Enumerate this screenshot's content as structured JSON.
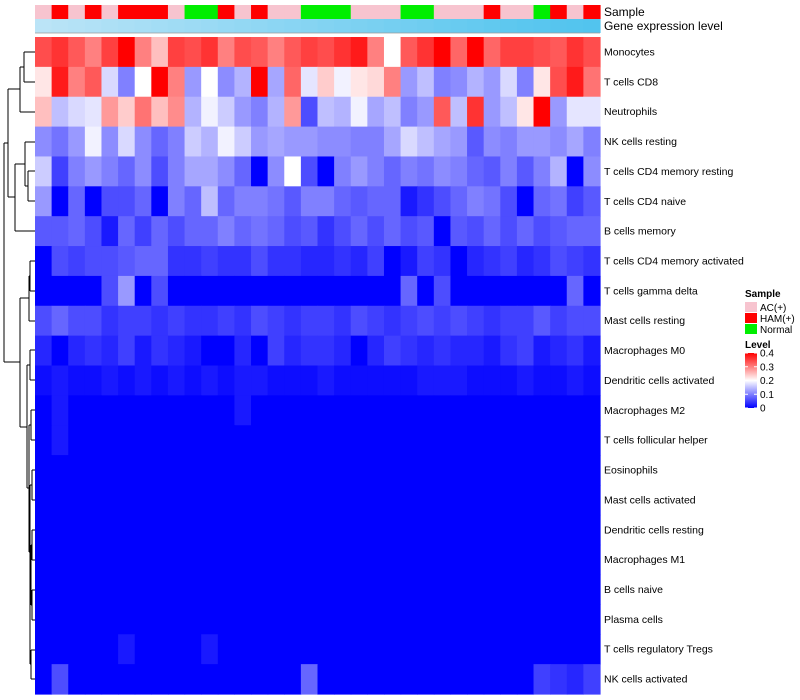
{
  "chart_data": {
    "type": "heatmap",
    "annotation_tracks": [
      "Sample",
      "Gene expression level"
    ],
    "rows": [
      "Monocytes",
      "T cells CD8",
      "Neutrophils",
      "NK cells resting",
      "T cells CD4 memory resting",
      "T cells CD4 naive",
      "B cells memory",
      "T cells CD4 memory activated",
      "T cells gamma delta",
      "Mast cells resting",
      "Macrophages M0",
      "Dendritic cells activated",
      "Macrophages M2",
      "T cells follicular helper",
      "Eosinophils",
      "Mast cells activated",
      "Dendritic cells resting",
      "Macrophages M1",
      "B cells naive",
      "Plasma cells",
      "T cells regulatory  Tregs",
      "NK cells activated"
    ],
    "n_columns": 34,
    "sample_annotation": [
      "AC(+)",
      "HAM(+)",
      "AC(+)",
      "HAM(+)",
      "AC(+)",
      "HAM(+)",
      "HAM(+)",
      "HAM(+)",
      "AC(+)",
      "Normal",
      "Normal",
      "HAM(+)",
      "AC(+)",
      "HAM(+)",
      "AC(+)",
      "AC(+)",
      "Normal",
      "Normal",
      "Normal",
      "AC(+)",
      "AC(+)",
      "AC(+)",
      "Normal",
      "Normal",
      "AC(+)",
      "AC(+)",
      "AC(+)",
      "HAM(+)",
      "AC(+)",
      "AC(+)",
      "Normal",
      "HAM(+)",
      "AC(+)",
      "HAM(+)"
    ],
    "gene_expression_level": [
      0.05,
      0.08,
      0.11,
      0.14,
      0.17,
      0.2,
      0.23,
      0.26,
      0.29,
      0.32,
      0.35,
      0.38,
      0.41,
      0.44,
      0.47,
      0.5,
      0.53,
      0.56,
      0.59,
      0.62,
      0.65,
      0.68,
      0.71,
      0.74,
      0.77,
      0.8,
      0.83,
      0.86,
      0.89,
      0.92,
      0.94,
      0.96,
      0.98,
      1.0
    ],
    "values": [
      [
        0.34,
        0.36,
        0.33,
        0.3,
        0.35,
        0.4,
        0.3,
        0.25,
        0.35,
        0.34,
        0.36,
        0.3,
        0.34,
        0.33,
        0.3,
        0.33,
        0.35,
        0.34,
        0.36,
        0.38,
        0.3,
        0.2,
        0.33,
        0.36,
        0.4,
        0.32,
        0.4,
        0.32,
        0.35,
        0.35,
        0.34,
        0.33,
        0.36,
        0.34
      ],
      [
        0.22,
        0.38,
        0.3,
        0.33,
        0.17,
        0.1,
        0.2,
        0.4,
        0.3,
        0.12,
        0.2,
        0.11,
        0.14,
        0.4,
        0.13,
        0.32,
        0.18,
        0.24,
        0.19,
        0.22,
        0.23,
        0.3,
        0.12,
        0.15,
        0.1,
        0.11,
        0.14,
        0.12,
        0.17,
        0.1,
        0.22,
        0.34,
        0.38,
        0.31
      ],
      [
        0.25,
        0.15,
        0.17,
        0.18,
        0.28,
        0.24,
        0.31,
        0.25,
        0.29,
        0.14,
        0.19,
        0.16,
        0.12,
        0.1,
        0.14,
        0.28,
        0.06,
        0.15,
        0.14,
        0.19,
        0.13,
        0.15,
        0.1,
        0.12,
        0.33,
        0.15,
        0.36,
        0.12,
        0.15,
        0.22,
        0.4,
        0.12,
        0.18,
        0.18
      ],
      [
        0.11,
        0.09,
        0.12,
        0.19,
        0.11,
        0.17,
        0.11,
        0.08,
        0.1,
        0.16,
        0.14,
        0.19,
        0.16,
        0.12,
        0.13,
        0.12,
        0.12,
        0.11,
        0.11,
        0.1,
        0.1,
        0.13,
        0.17,
        0.15,
        0.13,
        0.12,
        0.07,
        0.11,
        0.1,
        0.12,
        0.12,
        0.11,
        0.13,
        0.1
      ],
      [
        0.16,
        0.05,
        0.1,
        0.12,
        0.1,
        0.08,
        0.11,
        0.06,
        0.1,
        0.13,
        0.13,
        0.11,
        0.08,
        0.0,
        0.11,
        0.2,
        0.06,
        0.0,
        0.1,
        0.12,
        0.1,
        0.08,
        0.1,
        0.09,
        0.11,
        0.1,
        0.08,
        0.07,
        0.1,
        0.07,
        0.1,
        0.14,
        0.0,
        0.11
      ],
      [
        0.12,
        0.0,
        0.08,
        0.0,
        0.06,
        0.06,
        0.08,
        0.0,
        0.1,
        0.08,
        0.15,
        0.08,
        0.1,
        0.1,
        0.09,
        0.07,
        0.1,
        0.1,
        0.08,
        0.07,
        0.08,
        0.08,
        0.02,
        0.04,
        0.06,
        0.08,
        0.1,
        0.09,
        0.06,
        0.0,
        0.08,
        0.09,
        0.05,
        0.07
      ],
      [
        0.07,
        0.07,
        0.08,
        0.06,
        0.02,
        0.08,
        0.05,
        0.08,
        0.06,
        0.08,
        0.08,
        0.1,
        0.08,
        0.09,
        0.08,
        0.06,
        0.07,
        0.04,
        0.06,
        0.08,
        0.06,
        0.08,
        0.06,
        0.07,
        0.0,
        0.07,
        0.06,
        0.08,
        0.06,
        0.08,
        0.06,
        0.07,
        0.08,
        0.08
      ],
      [
        0.0,
        0.06,
        0.05,
        0.06,
        0.06,
        0.07,
        0.08,
        0.08,
        0.04,
        0.04,
        0.05,
        0.04,
        0.04,
        0.06,
        0.04,
        0.04,
        0.03,
        0.03,
        0.04,
        0.03,
        0.05,
        0.0,
        0.02,
        0.05,
        0.04,
        0.0,
        0.03,
        0.04,
        0.05,
        0.03,
        0.04,
        0.06,
        0.05,
        0.04
      ],
      [
        0.0,
        0.0,
        0.0,
        0.0,
        0.06,
        0.12,
        0.0,
        0.06,
        0.0,
        0.0,
        0.0,
        0.0,
        0.0,
        0.0,
        0.0,
        0.0,
        0.0,
        0.0,
        0.0,
        0.0,
        0.0,
        0.0,
        0.08,
        0.0,
        0.06,
        0.0,
        0.0,
        0.0,
        0.0,
        0.0,
        0.0,
        0.0,
        0.08,
        0.0
      ],
      [
        0.06,
        0.08,
        0.06,
        0.06,
        0.04,
        0.05,
        0.05,
        0.04,
        0.05,
        0.04,
        0.04,
        0.05,
        0.04,
        0.06,
        0.05,
        0.04,
        0.05,
        0.05,
        0.04,
        0.06,
        0.05,
        0.04,
        0.05,
        0.06,
        0.05,
        0.06,
        0.05,
        0.04,
        0.05,
        0.05,
        0.07,
        0.05,
        0.06,
        0.06
      ],
      [
        0.03,
        0.0,
        0.03,
        0.04,
        0.03,
        0.05,
        0.02,
        0.04,
        0.03,
        0.02,
        0.0,
        0.0,
        0.03,
        0.0,
        0.05,
        0.03,
        0.04,
        0.04,
        0.03,
        0.0,
        0.03,
        0.05,
        0.04,
        0.03,
        0.04,
        0.03,
        0.03,
        0.02,
        0.04,
        0.05,
        0.02,
        0.03,
        0.04,
        0.02
      ],
      [
        0.01,
        0.02,
        0.01,
        0.01,
        0.02,
        0.01,
        0.02,
        0.01,
        0.02,
        0.01,
        0.02,
        0.01,
        0.02,
        0.02,
        0.01,
        0.01,
        0.01,
        0.02,
        0.01,
        0.01,
        0.01,
        0.01,
        0.01,
        0.02,
        0.02,
        0.02,
        0.01,
        0.01,
        0.01,
        0.02,
        0.01,
        0.01,
        0.02,
        0.01
      ],
      [
        0.0,
        0.02,
        0.0,
        0.0,
        0.0,
        0.0,
        0.0,
        0.0,
        0.0,
        0.0,
        0.0,
        0.0,
        0.02,
        0.0,
        0.0,
        0.0,
        0.0,
        0.0,
        0.0,
        0.0,
        0.0,
        0.0,
        0.0,
        0.0,
        0.0,
        0.0,
        0.0,
        0.0,
        0.0,
        0.0,
        0.0,
        0.0,
        0.0,
        0.0
      ],
      [
        0.0,
        0.02,
        0.0,
        0.0,
        0.0,
        0.0,
        0.0,
        0.0,
        0.0,
        0.0,
        0.0,
        0.0,
        0.0,
        0.0,
        0.0,
        0.0,
        0.0,
        0.0,
        0.0,
        0.0,
        0.0,
        0.0,
        0.0,
        0.0,
        0.0,
        0.0,
        0.0,
        0.0,
        0.0,
        0.0,
        0.0,
        0.0,
        0.0,
        0.0
      ],
      [
        0.0,
        0.0,
        0.0,
        0.0,
        0.0,
        0.0,
        0.0,
        0.0,
        0.0,
        0.0,
        0.0,
        0.0,
        0.0,
        0.0,
        0.0,
        0.0,
        0.0,
        0.0,
        0.0,
        0.0,
        0.0,
        0.0,
        0.0,
        0.0,
        0.0,
        0.0,
        0.0,
        0.0,
        0.0,
        0.0,
        0.0,
        0.0,
        0.0,
        0.0
      ],
      [
        0.0,
        0.0,
        0.0,
        0.0,
        0.0,
        0.0,
        0.0,
        0.0,
        0.0,
        0.0,
        0.0,
        0.0,
        0.0,
        0.0,
        0.0,
        0.0,
        0.0,
        0.0,
        0.0,
        0.0,
        0.0,
        0.0,
        0.0,
        0.0,
        0.0,
        0.0,
        0.0,
        0.0,
        0.0,
        0.0,
        0.0,
        0.0,
        0.0,
        0.0
      ],
      [
        0.0,
        0.0,
        0.0,
        0.0,
        0.0,
        0.0,
        0.0,
        0.0,
        0.0,
        0.0,
        0.0,
        0.0,
        0.0,
        0.0,
        0.0,
        0.0,
        0.0,
        0.0,
        0.0,
        0.0,
        0.0,
        0.0,
        0.0,
        0.0,
        0.0,
        0.0,
        0.0,
        0.0,
        0.0,
        0.0,
        0.0,
        0.0,
        0.0,
        0.0
      ],
      [
        0.0,
        0.0,
        0.0,
        0.0,
        0.0,
        0.0,
        0.0,
        0.0,
        0.0,
        0.0,
        0.0,
        0.0,
        0.0,
        0.0,
        0.0,
        0.0,
        0.0,
        0.0,
        0.0,
        0.0,
        0.0,
        0.0,
        0.0,
        0.0,
        0.0,
        0.0,
        0.0,
        0.0,
        0.0,
        0.0,
        0.0,
        0.0,
        0.0,
        0.0
      ],
      [
        0.0,
        0.0,
        0.0,
        0.0,
        0.0,
        0.0,
        0.0,
        0.0,
        0.0,
        0.0,
        0.0,
        0.0,
        0.0,
        0.0,
        0.0,
        0.0,
        0.0,
        0.0,
        0.0,
        0.0,
        0.0,
        0.0,
        0.0,
        0.0,
        0.0,
        0.0,
        0.0,
        0.0,
        0.0,
        0.0,
        0.0,
        0.0,
        0.0,
        0.0
      ],
      [
        0.0,
        0.0,
        0.0,
        0.0,
        0.0,
        0.0,
        0.0,
        0.0,
        0.0,
        0.0,
        0.0,
        0.0,
        0.0,
        0.0,
        0.0,
        0.0,
        0.0,
        0.0,
        0.0,
        0.0,
        0.0,
        0.0,
        0.0,
        0.0,
        0.0,
        0.0,
        0.0,
        0.0,
        0.0,
        0.0,
        0.0,
        0.0,
        0.0,
        0.0
      ],
      [
        0.0,
        0.0,
        0.0,
        0.0,
        0.0,
        0.02,
        0.0,
        0.0,
        0.0,
        0.0,
        0.02,
        0.0,
        0.0,
        0.0,
        0.0,
        0.0,
        0.0,
        0.0,
        0.0,
        0.0,
        0.0,
        0.0,
        0.0,
        0.0,
        0.0,
        0.0,
        0.0,
        0.0,
        0.0,
        0.0,
        0.0,
        0.0,
        0.0,
        0.0
      ],
      [
        0.0,
        0.06,
        0.0,
        0.0,
        0.0,
        0.0,
        0.0,
        0.0,
        0.0,
        0.0,
        0.0,
        0.0,
        0.0,
        0.0,
        0.0,
        0.0,
        0.08,
        0.0,
        0.0,
        0.0,
        0.0,
        0.0,
        0.0,
        0.0,
        0.0,
        0.0,
        0.0,
        0.0,
        0.0,
        0.0,
        0.05,
        0.04,
        0.03,
        0.05
      ]
    ],
    "legend": {
      "sample_title": "Sample",
      "sample_entries": [
        "AC(+)",
        "HAM(+)",
        "Normal"
      ],
      "level_title": "Level",
      "level_ticks": [
        "0.4",
        "0.3",
        "0.2",
        "0.1",
        "0"
      ],
      "level_tick_values": [
        0.4,
        0.3,
        0.2,
        0.1,
        0
      ],
      "level_range": [
        0,
        0.4
      ]
    }
  },
  "colors": {
    "AC(+)": "#f7c4cf",
    "HAM(+)": "#ff0000",
    "Normal": "#00ee00",
    "low": "#0000ff",
    "mid": "#ffffff",
    "high": "#ff0000",
    "gene_low": "#c0e6f7",
    "gene_high": "#52c4ee"
  }
}
